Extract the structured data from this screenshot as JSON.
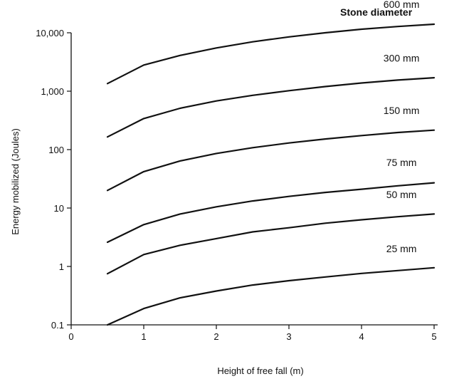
{
  "chart_data": {
    "type": "line",
    "title": "",
    "xlabel": "Height of free fall (m)",
    "ylabel": "Energy mobilized (Joules)",
    "legend_title": "Stone diameter",
    "yscale": "log",
    "xlim": [
      0,
      5.3
    ],
    "ylim": [
      0.1,
      20000
    ],
    "grid": false,
    "x_ticks": [
      0,
      1,
      2,
      3,
      4,
      5
    ],
    "x_tick_labels": [
      "0",
      "1",
      "2",
      "3",
      "4",
      "5"
    ],
    "y_ticks": [
      0.1,
      1,
      10,
      100,
      1000,
      10000
    ],
    "y_tick_labels": [
      "0.1",
      "1",
      "10",
      "100",
      "1,000",
      "10,000"
    ],
    "x": [
      0.5,
      1,
      1.5,
      2,
      2.5,
      3,
      3.5,
      4,
      4.5,
      5
    ],
    "series": [
      {
        "name": "600 mm",
        "values": [
          1350,
          2800,
          4100,
          5500,
          7000,
          8500,
          10000,
          11500,
          12800,
          14000
        ]
      },
      {
        "name": "300 mm",
        "values": [
          165,
          340,
          510,
          680,
          850,
          1020,
          1200,
          1380,
          1550,
          1700
        ]
      },
      {
        "name": "150 mm",
        "values": [
          20,
          42,
          64,
          86,
          108,
          130,
          152,
          174,
          196,
          215
        ]
      },
      {
        "name": "75 mm",
        "values": [
          2.6,
          5.2,
          7.9,
          10.5,
          13.2,
          15.8,
          18.5,
          21,
          24,
          27
        ]
      },
      {
        "name": "50 mm",
        "values": [
          0.75,
          1.6,
          2.3,
          3.0,
          3.9,
          4.6,
          5.5,
          6.3,
          7.1,
          7.9
        ]
      },
      {
        "name": "25 mm",
        "values": [
          0.1,
          0.19,
          0.29,
          0.38,
          0.48,
          0.57,
          0.66,
          0.76,
          0.85,
          0.95
        ]
      }
    ]
  }
}
